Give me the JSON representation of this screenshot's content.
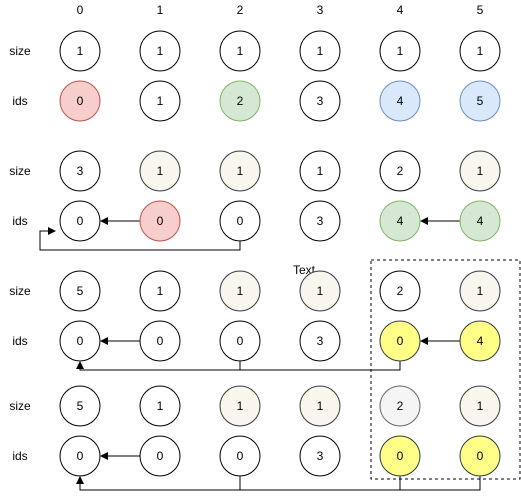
{
  "column_headers": [
    "0",
    "1",
    "2",
    "3",
    "4",
    "5"
  ],
  "row_labels": [
    "size",
    "ids",
    "size",
    "ids",
    "size",
    "ids",
    "size",
    "ids"
  ],
  "floating_label": "Text",
  "colors": {
    "white": "#ffffff",
    "red": "#f8cecc",
    "green": "#d5e8d4",
    "blue": "#dae8fc",
    "beige": "#f9f7ed",
    "yellow": "#ffff88",
    "gray": "#f5f5f5"
  },
  "rows": [
    {
      "values": [
        "1",
        "1",
        "1",
        "1",
        "1",
        "1"
      ],
      "fills": [
        "white",
        "white",
        "white",
        "white",
        "white",
        "white"
      ]
    },
    {
      "values": [
        "0",
        "1",
        "2",
        "3",
        "4",
        "5"
      ],
      "fills": [
        "red",
        "white",
        "green",
        "white",
        "blue",
        "blue"
      ]
    },
    {
      "values": [
        "3",
        "1",
        "1",
        "1",
        "2",
        "1"
      ],
      "fills": [
        "white",
        "beige",
        "beige",
        "white",
        "white",
        "beige"
      ]
    },
    {
      "values": [
        "0",
        "0",
        "0",
        "3",
        "4",
        "4"
      ],
      "fills": [
        "white",
        "red",
        "white",
        "white",
        "green",
        "green"
      ]
    },
    {
      "values": [
        "5",
        "1",
        "1",
        "1",
        "2",
        "1"
      ],
      "fills": [
        "white",
        "white",
        "beige",
        "beige",
        "white",
        "beige"
      ]
    },
    {
      "values": [
        "0",
        "0",
        "0",
        "3",
        "0",
        "4"
      ],
      "fills": [
        "white",
        "white",
        "white",
        "white",
        "yellow",
        "yellow"
      ]
    },
    {
      "values": [
        "5",
        "1",
        "1",
        "1",
        "2",
        "1"
      ],
      "fills": [
        "white",
        "white",
        "beige",
        "beige",
        "gray",
        "beige"
      ]
    },
    {
      "values": [
        "0",
        "0",
        "0",
        "3",
        "0",
        "0"
      ],
      "fills": [
        "white",
        "white",
        "white",
        "white",
        "yellow",
        "yellow"
      ]
    }
  ]
}
